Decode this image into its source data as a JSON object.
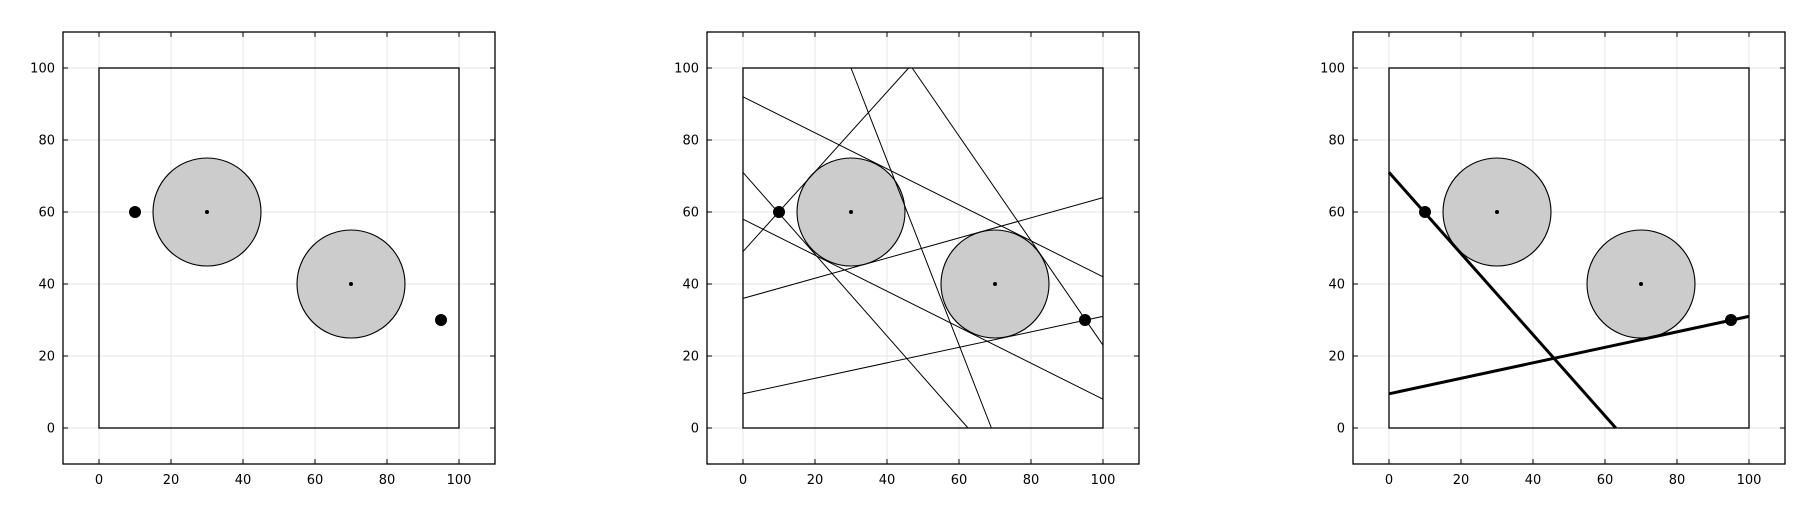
{
  "chart_data": [
    {
      "type": "scatter",
      "xlim": [
        -10,
        110
      ],
      "ylim": [
        -10,
        110
      ],
      "xticks": [
        0,
        20,
        40,
        60,
        80,
        100
      ],
      "yticks": [
        0,
        20,
        40,
        60,
        80,
        100
      ],
      "grid": true,
      "boundary": {
        "x": [
          0,
          100
        ],
        "y": [
          0,
          100
        ]
      },
      "obstacles": [
        {
          "cx": 30,
          "cy": 60,
          "r": 15
        },
        {
          "cx": 70,
          "cy": 40,
          "r": 15
        }
      ],
      "points": [
        {
          "x": 10,
          "y": 60
        },
        {
          "x": 95,
          "y": 30
        }
      ],
      "lines": []
    },
    {
      "type": "scatter",
      "xlim": [
        -10,
        110
      ],
      "ylim": [
        -10,
        110
      ],
      "xticks": [
        0,
        20,
        40,
        60,
        80,
        100
      ],
      "yticks": [
        0,
        20,
        40,
        60,
        80,
        100
      ],
      "grid": true,
      "boundary": {
        "x": [
          0,
          100
        ],
        "y": [
          0,
          100
        ]
      },
      "obstacles": [
        {
          "cx": 30,
          "cy": 60,
          "r": 15
        },
        {
          "cx": 70,
          "cy": 40,
          "r": 15
        }
      ],
      "points": [
        {
          "x": 10,
          "y": 60
        },
        {
          "x": 95,
          "y": 30
        }
      ],
      "lines": [
        {
          "x1": 0,
          "y1": 71,
          "x2": 62.5,
          "y2": 0,
          "bold": false
        },
        {
          "x1": 0,
          "y1": 49,
          "x2": 46,
          "y2": 100,
          "bold": false
        },
        {
          "x1": 0,
          "y1": 92,
          "x2": 100,
          "y2": 42,
          "bold": false
        },
        {
          "x1": 0,
          "y1": 58,
          "x2": 100,
          "y2": 8,
          "bold": false
        },
        {
          "x1": 0,
          "y1": 36,
          "x2": 100,
          "y2": 64,
          "bold": false
        },
        {
          "x1": 0,
          "y1": 9.5,
          "x2": 100,
          "y2": 31,
          "bold": false
        },
        {
          "x1": 30,
          "y1": 100,
          "x2": 69,
          "y2": 0,
          "bold": false
        },
        {
          "x1": 47,
          "y1": 100,
          "x2": 100,
          "y2": 23,
          "bold": false
        }
      ]
    },
    {
      "type": "scatter",
      "xlim": [
        -10,
        110
      ],
      "ylim": [
        -10,
        110
      ],
      "xticks": [
        0,
        20,
        40,
        60,
        80,
        100
      ],
      "yticks": [
        0,
        20,
        40,
        60,
        80,
        100
      ],
      "grid": true,
      "boundary": {
        "x": [
          0,
          100
        ],
        "y": [
          0,
          100
        ]
      },
      "obstacles": [
        {
          "cx": 30,
          "cy": 60,
          "r": 15
        },
        {
          "cx": 70,
          "cy": 40,
          "r": 15
        }
      ],
      "points": [
        {
          "x": 10,
          "y": 60
        },
        {
          "x": 95,
          "y": 30
        }
      ],
      "lines": [
        {
          "x1": 0,
          "y1": 71,
          "x2": 63,
          "y2": 0,
          "bold": true
        },
        {
          "x1": 0,
          "y1": 9.5,
          "x2": 100,
          "y2": 31,
          "bold": true
        }
      ]
    }
  ],
  "colors": {
    "obstacle_fill": "#cccccc",
    "ink": "#000000",
    "grid": "#e6e6e6"
  }
}
